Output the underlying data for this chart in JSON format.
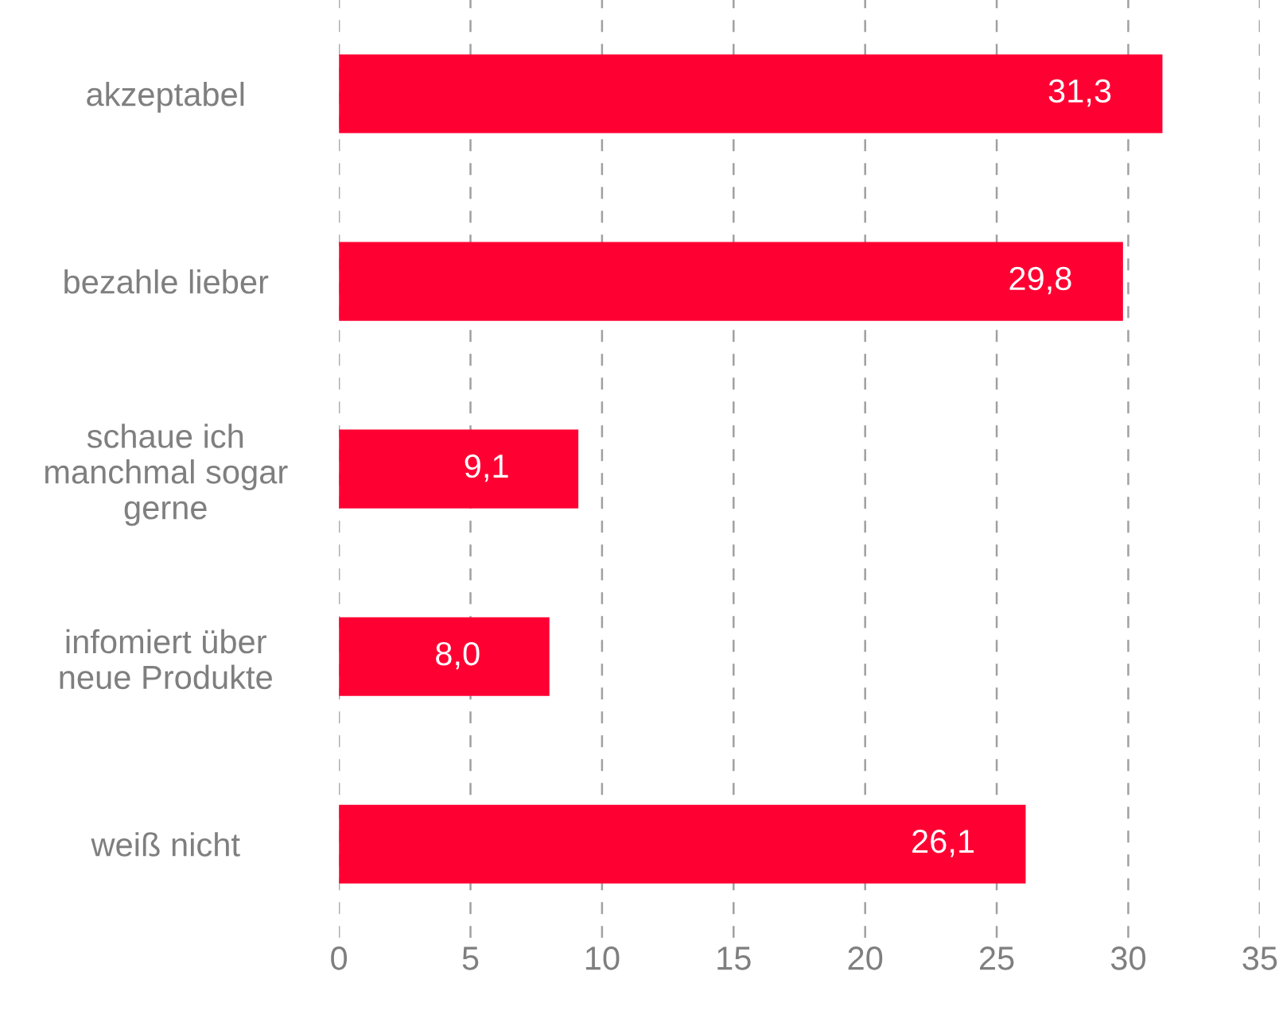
{
  "chart_data": {
    "type": "bar",
    "orientation": "horizontal",
    "categories": [
      "akzeptabel",
      "bezahle lieber",
      "schaue ich\nmanchmal sogar\ngerne",
      "infomiert über\nneue Produkte",
      "weiß nicht"
    ],
    "values": [
      31.3,
      29.8,
      9.1,
      8.0,
      26.1
    ],
    "value_labels": [
      "31,3",
      "29,8",
      "9,1",
      "8,0",
      "26,1"
    ],
    "color": "#ff0033",
    "xlim": [
      0,
      35
    ],
    "xticks": [
      0,
      5,
      10,
      15,
      20,
      25,
      30,
      35
    ],
    "grid": "x",
    "line_style": "dashed"
  }
}
